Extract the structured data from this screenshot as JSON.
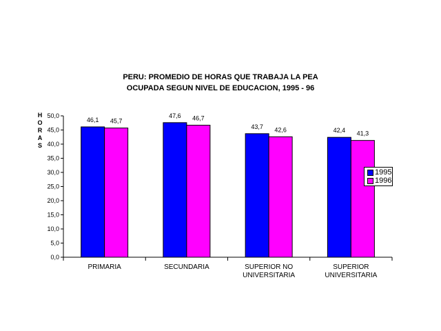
{
  "chart_data": {
    "type": "bar",
    "title_lines": [
      "PERU: PROMEDIO DE HORAS QUE TRABAJA LA PEA",
      "OCUPADA SEGUN NIVEL DE EDUCACION, 1995 - 96"
    ],
    "ylabel": "HORAS",
    "categories": [
      [
        "PRIMARIA"
      ],
      [
        "SECUNDARIA"
      ],
      [
        "SUPERIOR NO",
        "UNIVERSITARIA"
      ],
      [
        "SUPERIOR",
        "UNIVERSITARIA"
      ]
    ],
    "series": [
      {
        "name": "1995",
        "color": "#0000ff",
        "values": [
          46.1,
          47.6,
          43.7,
          42.4
        ],
        "labels": [
          "46,1",
          "47,6",
          "43,7",
          "42,4"
        ]
      },
      {
        "name": "1996",
        "color": "#ff00ff",
        "values": [
          45.7,
          46.7,
          42.6,
          41.3
        ],
        "labels": [
          "45,7",
          "46,7",
          "42,6",
          "41,3"
        ]
      }
    ],
    "ylim": [
      0,
      50
    ],
    "yticks": [
      "0,0",
      "5,0",
      "10,0",
      "15,0",
      "20,0",
      "25,0",
      "30,0",
      "35,0",
      "40,0",
      "45,0",
      "50,0"
    ],
    "legend_position": "right",
    "grid": false
  }
}
